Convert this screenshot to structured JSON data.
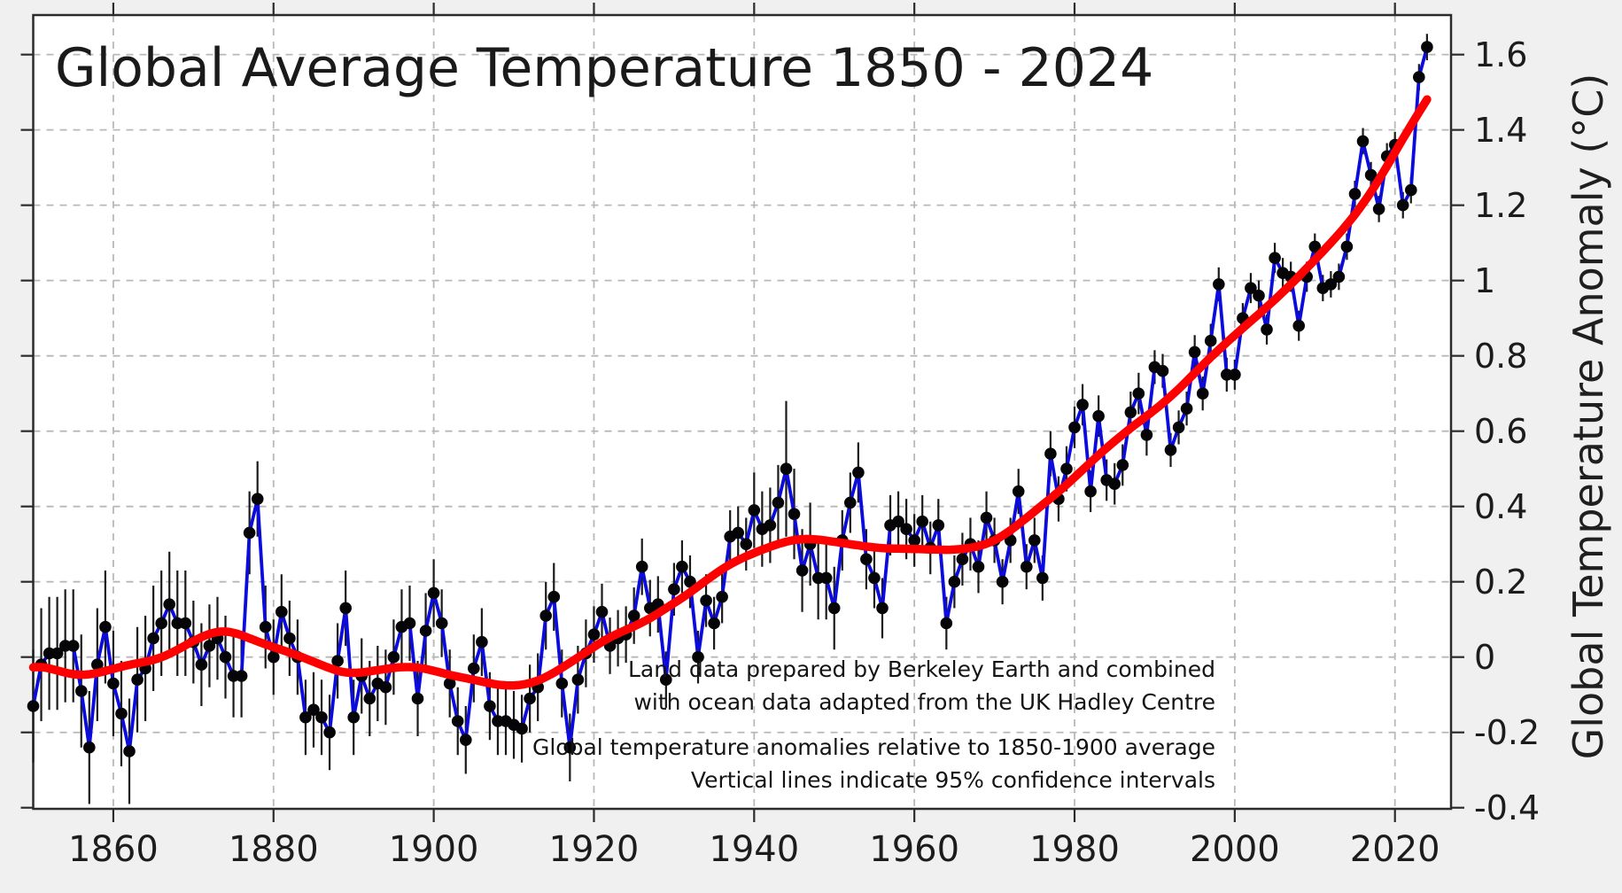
{
  "chart_data": {
    "type": "line",
    "title": "Global Average Temperature 1850 - 2024",
    "ylabel": "Global Temperature Anomaly (°C)",
    "xlabel": "",
    "annotations": {
      "source_line1": "Land data prepared by Berkeley Earth and combined",
      "source_line2": "with ocean data adapted from the UK Hadley Centre",
      "baseline_line1": "Global temperature anomalies relative to 1850-1900 average",
      "baseline_line2": "Vertical lines indicate 95% confidence intervals"
    },
    "xlim": [
      1850,
      2027
    ],
    "ylim": [
      -0.403,
      1.705
    ],
    "grid": true,
    "legend": "none",
    "xticks": {
      "values": [
        1860,
        1880,
        1900,
        1920,
        1940,
        1960,
        1980,
        2000,
        2020
      ],
      "labels": [
        "1860",
        "1880",
        "1900",
        "1920",
        "1940",
        "1960",
        "1980",
        "2000",
        "2020"
      ]
    },
    "yticks": {
      "values": [
        -0.4,
        -0.2,
        0,
        0.2,
        0.4,
        0.6,
        0.8,
        1,
        1.2,
        1.4,
        1.6
      ],
      "labels": [
        "-0.4",
        "-0.2",
        "0",
        "0.2",
        "0.4",
        "0.6",
        "0.8",
        "1",
        "1.2",
        "1.4",
        "1.6"
      ]
    },
    "x": [
      1850,
      1851,
      1852,
      1853,
      1854,
      1855,
      1856,
      1857,
      1858,
      1859,
      1860,
      1861,
      1862,
      1863,
      1864,
      1865,
      1866,
      1867,
      1868,
      1869,
      1870,
      1871,
      1872,
      1873,
      1874,
      1875,
      1876,
      1877,
      1878,
      1879,
      1880,
      1881,
      1882,
      1883,
      1884,
      1885,
      1886,
      1887,
      1888,
      1889,
      1890,
      1891,
      1892,
      1893,
      1894,
      1895,
      1896,
      1897,
      1898,
      1899,
      1900,
      1901,
      1902,
      1903,
      1904,
      1905,
      1906,
      1907,
      1908,
      1909,
      1910,
      1911,
      1912,
      1913,
      1914,
      1915,
      1916,
      1917,
      1918,
      1919,
      1920,
      1921,
      1922,
      1923,
      1924,
      1925,
      1926,
      1927,
      1928,
      1929,
      1930,
      1931,
      1932,
      1933,
      1934,
      1935,
      1936,
      1937,
      1938,
      1939,
      1940,
      1941,
      1942,
      1943,
      1944,
      1945,
      1946,
      1947,
      1948,
      1949,
      1950,
      1951,
      1952,
      1953,
      1954,
      1955,
      1956,
      1957,
      1958,
      1959,
      1960,
      1961,
      1962,
      1963,
      1964,
      1965,
      1966,
      1967,
      1968,
      1969,
      1970,
      1971,
      1972,
      1973,
      1974,
      1975,
      1976,
      1977,
      1978,
      1979,
      1980,
      1981,
      1982,
      1983,
      1984,
      1985,
      1986,
      1987,
      1988,
      1989,
      1990,
      1991,
      1992,
      1993,
      1994,
      1995,
      1996,
      1997,
      1998,
      1999,
      2000,
      2001,
      2002,
      2003,
      2004,
      2005,
      2006,
      2007,
      2008,
      2009,
      2010,
      2011,
      2012,
      2013,
      2014,
      2015,
      2016,
      2017,
      2018,
      2019,
      2020,
      2021,
      2022,
      2023,
      2024
    ],
    "series": [
      {
        "name": "annual-mean-anomaly",
        "style": "line-with-markers-and-error-bars",
        "line_color": "#0b0bdd",
        "marker_color": "#050508",
        "error_bar_color": "#1a1a1a",
        "values": [
          -0.13,
          -0.02,
          0.01,
          0.01,
          0.03,
          0.03,
          -0.09,
          -0.24,
          -0.02,
          0.08,
          -0.07,
          -0.15,
          -0.25,
          -0.06,
          -0.03,
          0.05,
          0.09,
          0.14,
          0.09,
          0.09,
          0.04,
          -0.02,
          0.03,
          0.05,
          0.0,
          -0.05,
          -0.05,
          0.33,
          0.42,
          0.08,
          0.0,
          0.12,
          0.05,
          0.0,
          -0.16,
          -0.14,
          -0.16,
          -0.2,
          -0.01,
          0.13,
          -0.16,
          -0.05,
          -0.11,
          -0.07,
          -0.08,
          0.0,
          0.08,
          0.09,
          -0.11,
          0.07,
          0.17,
          0.09,
          -0.07,
          -0.17,
          -0.22,
          -0.03,
          0.04,
          -0.13,
          -0.17,
          -0.17,
          -0.18,
          -0.19,
          -0.11,
          -0.08,
          0.11,
          0.16,
          -0.07,
          -0.24,
          -0.06,
          0.01,
          0.06,
          0.12,
          0.03,
          0.05,
          0.06,
          0.11,
          0.24,
          0.13,
          0.14,
          -0.06,
          0.18,
          0.24,
          0.2,
          0.0,
          0.15,
          0.09,
          0.16,
          0.32,
          0.33,
          0.3,
          0.39,
          0.34,
          0.35,
          0.41,
          0.5,
          0.38,
          0.23,
          0.3,
          0.21,
          0.21,
          0.13,
          0.31,
          0.41,
          0.49,
          0.26,
          0.21,
          0.13,
          0.35,
          0.36,
          0.34,
          0.31,
          0.36,
          0.29,
          0.35,
          0.09,
          0.2,
          0.26,
          0.3,
          0.24,
          0.37,
          0.31,
          0.2,
          0.31,
          0.44,
          0.24,
          0.31,
          0.21,
          0.54,
          0.42,
          0.5,
          0.61,
          0.67,
          0.44,
          0.64,
          0.47,
          0.46,
          0.51,
          0.65,
          0.7,
          0.59,
          0.77,
          0.76,
          0.55,
          0.61,
          0.66,
          0.81,
          0.7,
          0.84,
          0.99,
          0.75,
          0.75,
          0.9,
          0.98,
          0.96,
          0.87,
          1.06,
          1.02,
          1.01,
          0.88,
          1.01,
          1.09,
          0.98,
          0.99,
          1.01,
          1.09,
          1.23,
          1.37,
          1.28,
          1.19,
          1.33,
          1.36,
          1.2,
          1.24,
          1.54,
          1.62
        ],
        "uncertainty_95": [
          0.15,
          0.15,
          0.15,
          0.15,
          0.15,
          0.15,
          0.15,
          0.15,
          0.15,
          0.15,
          0.14,
          0.14,
          0.14,
          0.14,
          0.14,
          0.14,
          0.14,
          0.14,
          0.14,
          0.14,
          0.11,
          0.11,
          0.11,
          0.11,
          0.11,
          0.11,
          0.11,
          0.11,
          0.1,
          0.11,
          0.1,
          0.1,
          0.1,
          0.1,
          0.1,
          0.1,
          0.1,
          0.1,
          0.1,
          0.1,
          0.1,
          0.1,
          0.1,
          0.1,
          0.1,
          0.1,
          0.1,
          0.1,
          0.1,
          0.1,
          0.09,
          0.09,
          0.09,
          0.09,
          0.09,
          0.09,
          0.09,
          0.09,
          0.09,
          0.09,
          0.09,
          0.09,
          0.09,
          0.09,
          0.09,
          0.09,
          0.09,
          0.09,
          0.09,
          0.09,
          0.075,
          0.075,
          0.075,
          0.075,
          0.075,
          0.075,
          0.075,
          0.075,
          0.075,
          0.075,
          0.07,
          0.07,
          0.07,
          0.07,
          0.07,
          0.07,
          0.07,
          0.07,
          0.07,
          0.07,
          0.1,
          0.1,
          0.1,
          0.1,
          0.18,
          0.12,
          0.11,
          0.11,
          0.11,
          0.11,
          0.11,
          0.08,
          0.08,
          0.08,
          0.08,
          0.08,
          0.08,
          0.08,
          0.08,
          0.08,
          0.07,
          0.07,
          0.07,
          0.07,
          0.07,
          0.07,
          0.07,
          0.07,
          0.07,
          0.07,
          0.06,
          0.06,
          0.06,
          0.06,
          0.06,
          0.06,
          0.06,
          0.06,
          0.06,
          0.06,
          0.055,
          0.055,
          0.055,
          0.055,
          0.055,
          0.055,
          0.055,
          0.055,
          0.055,
          0.055,
          0.045,
          0.045,
          0.045,
          0.045,
          0.045,
          0.045,
          0.045,
          0.045,
          0.045,
          0.045,
          0.04,
          0.04,
          0.04,
          0.04,
          0.04,
          0.04,
          0.04,
          0.04,
          0.04,
          0.04,
          0.035,
          0.035,
          0.035,
          0.035,
          0.035,
          0.035,
          0.035,
          0.035,
          0.035,
          0.035,
          0.035,
          0.035,
          0.035,
          0.035,
          0.035
        ]
      },
      {
        "name": "smoothed-trend",
        "style": "thick-smooth-line",
        "line_color": "#ff0000",
        "smoothing": "local linear (loess), ~14-year tricube window, derived from annual values"
      }
    ],
    "colors": {
      "figure_background": "#f0f0f0",
      "plot_background": "#ffffff",
      "grid": "#b8b8b8",
      "spine": "#2b2b2b",
      "text": "#1c1c1c",
      "annual_line": "#0b0bdd",
      "markers": "#050508",
      "error_bars": "#1a1a1a",
      "trend_line": "#ff0000"
    }
  }
}
